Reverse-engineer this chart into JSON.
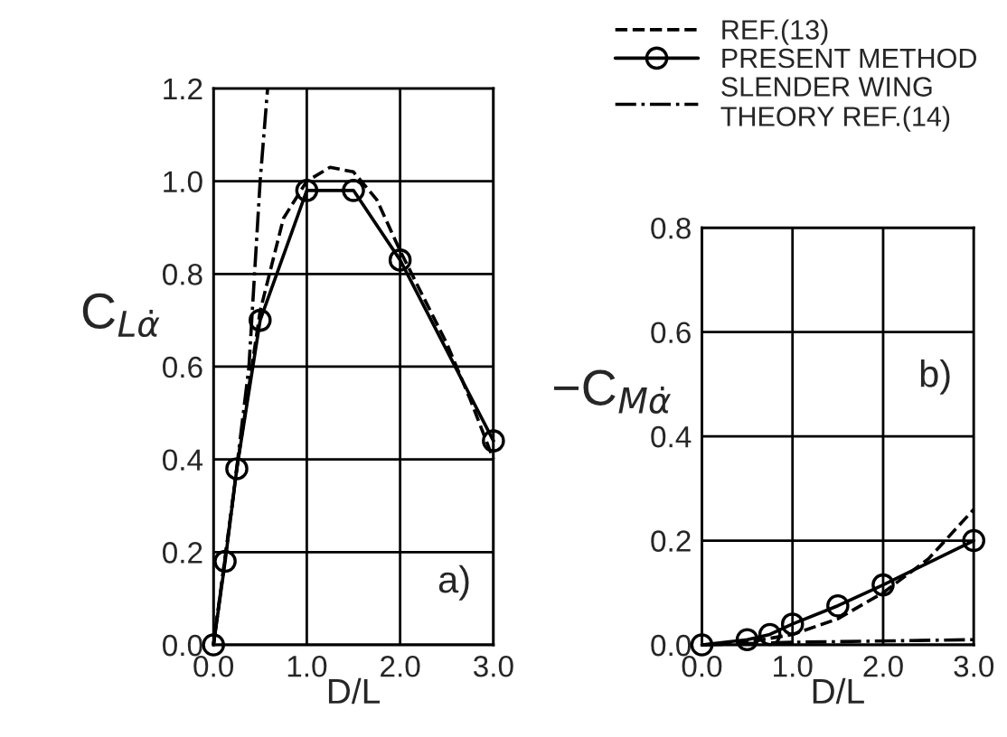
{
  "chart_data": [
    {
      "type": "line",
      "xlabel": "D/L",
      "ylabel": "C$_{Lα̇}$",
      "xlim": [
        0,
        3
      ],
      "ylim": [
        0,
        1.2
      ],
      "xticks": [
        {
          "value": 0,
          "label": "0.0"
        },
        {
          "value": 1,
          "label": "1.0"
        },
        {
          "value": 2,
          "label": "2.0"
        },
        {
          "value": 3,
          "label": "3.0"
        }
      ],
      "yticks": [
        {
          "value": 0,
          "label": "0.0"
        },
        {
          "value": 0.2,
          "label": "0.2"
        },
        {
          "value": 0.4,
          "label": "0.4"
        },
        {
          "value": 0.6,
          "label": "0.6"
        },
        {
          "value": 0.8,
          "label": "0.8"
        },
        {
          "value": 1.0,
          "label": "1.0"
        },
        {
          "value": 1.2,
          "label": "1.2"
        }
      ],
      "grid": true,
      "legend": "top right",
      "annotations": [
        "a)"
      ],
      "series": [
        {
          "name": "REF.(13)",
          "color": "#000000",
          "line_style": "dashed",
          "marker": "none",
          "x": [
            0,
            0.25,
            0.5,
            0.75,
            1.0,
            1.25,
            1.5,
            1.75,
            2.0,
            2.5,
            2.75,
            3.0
          ],
          "values": [
            0,
            0.38,
            0.72,
            0.92,
            1.0,
            1.03,
            1.02,
            0.96,
            0.85,
            0.65,
            0.53,
            0.4
          ]
        },
        {
          "name": "PRESENT METHOD",
          "color": "#000000",
          "line_style": "solid",
          "marker": "circle",
          "x": [
            0,
            0.125,
            0.25,
            0.5,
            1.0,
            1.5,
            2.0,
            3.0
          ],
          "values": [
            0,
            0.18,
            0.38,
            0.7,
            0.98,
            0.98,
            0.83,
            0.44
          ]
        },
        {
          "name": "SLENDER WING\nTHEORY REF.(14)",
          "color": "#000000",
          "line_style": "dashdot",
          "marker": "none",
          "x": [
            0,
            0.2,
            0.38,
            0.5,
            0.58
          ],
          "values": [
            0,
            0.3,
            0.6,
            1.0,
            1.2
          ]
        }
      ]
    },
    {
      "type": "line",
      "xlabel": "D/L",
      "ylabel": "−C$_{Mα̇}$",
      "xlim": [
        0,
        3
      ],
      "ylim": [
        0,
        0.8
      ],
      "xticks": [
        {
          "value": 0,
          "label": "0.0"
        },
        {
          "value": 1,
          "label": "1.0"
        },
        {
          "value": 2,
          "label": "2.0"
        },
        {
          "value": 3,
          "label": "3.0"
        }
      ],
      "yticks": [
        {
          "value": 0,
          "label": "0.0"
        },
        {
          "value": 0.2,
          "label": "0.2"
        },
        {
          "value": 0.4,
          "label": "0.4"
        },
        {
          "value": 0.6,
          "label": "0.6"
        },
        {
          "value": 0.8,
          "label": "0.8"
        }
      ],
      "grid": true,
      "annotations": [
        "b)"
      ],
      "series": [
        {
          "color": "#000000",
          "line_style": "dashed",
          "marker": "none",
          "x": [
            0,
            0.5,
            1.0,
            1.5,
            2.0,
            2.5,
            3.0
          ],
          "values": [
            0,
            0.005,
            0.02,
            0.05,
            0.1,
            0.165,
            0.26
          ]
        },
        {
          "color": "#000000",
          "line_style": "solid",
          "marker": "circle",
          "x": [
            0,
            0.5,
            0.75,
            1.0,
            1.5,
            2.0,
            3.0
          ],
          "values": [
            0,
            0.01,
            0.02,
            0.04,
            0.075,
            0.115,
            0.2
          ]
        },
        {
          "color": "#000000",
          "line_style": "dashdot",
          "marker": "none",
          "x": [
            0,
            1.0,
            3.0
          ],
          "values": [
            0,
            0.005,
            0.01
          ]
        }
      ]
    }
  ]
}
